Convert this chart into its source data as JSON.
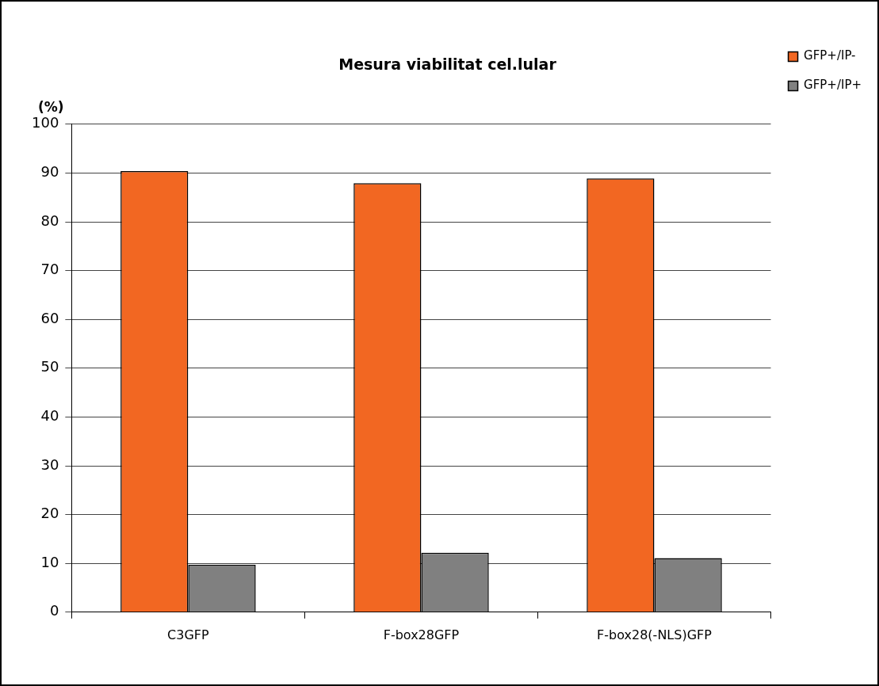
{
  "chart_data": {
    "type": "bar",
    "title": "Mesura viabilitat cel.lular",
    "ylabel": "(%)",
    "categories": [
      "C3GFP",
      "F-box28GFP",
      "F-box28(-NLS)GFP"
    ],
    "series": [
      {
        "name": "GFP+/IP-",
        "color": "#f26722",
        "values": [
          90.4,
          87.9,
          88.9
        ]
      },
      {
        "name": "GFP+/IP+",
        "color": "#808080",
        "values": [
          9.7,
          12.2,
          11.1
        ]
      }
    ],
    "ylim": [
      0,
      100
    ],
    "yticks": [
      0,
      10,
      20,
      30,
      40,
      50,
      60,
      70,
      80,
      90,
      100
    ],
    "grid": "y",
    "legend": "right"
  }
}
